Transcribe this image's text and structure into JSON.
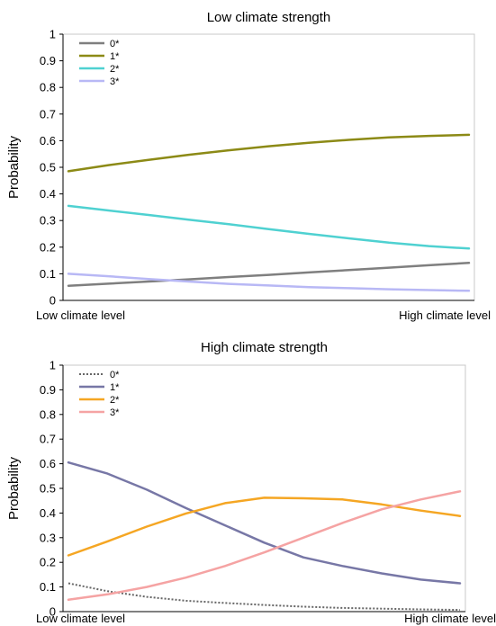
{
  "chart_data": [
    {
      "type": "line",
      "title": "Low climate strength",
      "ylabel": "Probability",
      "xlabel": "",
      "categories": [
        "Low climate level",
        "High climate level"
      ],
      "x": [
        0,
        1,
        2,
        3,
        4,
        5,
        6,
        7,
        8,
        9,
        10
      ],
      "ylim": [
        0,
        1
      ],
      "yticks": [
        "0",
        "0.1",
        "0.2",
        "0.3",
        "0.4",
        "0.5",
        "0.6",
        "0.7",
        "0.8",
        "0.9",
        "1"
      ],
      "legend": "top-left",
      "series": [
        {
          "name": "0*",
          "color": "#7f7f7f",
          "dash": "solid",
          "values": [
            0.055,
            0.063,
            0.071,
            0.079,
            0.088,
            0.096,
            0.105,
            0.114,
            0.123,
            0.132,
            0.141
          ]
        },
        {
          "name": "1*",
          "color": "#8c8a16",
          "values": [
            0.485,
            0.508,
            0.528,
            0.547,
            0.564,
            0.579,
            0.592,
            0.603,
            0.612,
            0.618,
            0.622
          ]
        },
        {
          "name": "2*",
          "color": "#4fd1d1",
          "values": [
            0.355,
            0.338,
            0.321,
            0.303,
            0.286,
            0.268,
            0.25,
            0.233,
            0.217,
            0.204,
            0.195
          ]
        },
        {
          "name": "3*",
          "color": "#b8b8f5",
          "values": [
            0.1,
            0.091,
            0.08,
            0.071,
            0.062,
            0.056,
            0.05,
            0.046,
            0.042,
            0.039,
            0.036
          ]
        }
      ]
    },
    {
      "type": "line",
      "title": "High climate strength",
      "ylabel": "Probability",
      "xlabel": "",
      "categories": [
        "Low climate level",
        "High climate level"
      ],
      "x": [
        0,
        1,
        2,
        3,
        4,
        5,
        6,
        7,
        8,
        9,
        10
      ],
      "ylim": [
        0,
        1
      ],
      "yticks": [
        "0",
        "0.1",
        "0.2",
        "0.3",
        "0.4",
        "0.5",
        "0.6",
        "0.7",
        "0.8",
        "0.9",
        "1"
      ],
      "legend": "top-left",
      "series": [
        {
          "name": "0*",
          "color": "#666666",
          "dash": "dotted",
          "values": [
            0.115,
            0.083,
            0.06,
            0.044,
            0.035,
            0.027,
            0.02,
            0.015,
            0.012,
            0.009,
            0.007
          ]
        },
        {
          "name": "1*",
          "color": "#7777a6",
          "values": [
            0.605,
            0.56,
            0.495,
            0.42,
            0.35,
            0.28,
            0.22,
            0.185,
            0.155,
            0.13,
            0.115
          ]
        },
        {
          "name": "2*",
          "color": "#f5a623",
          "values": [
            0.228,
            0.285,
            0.345,
            0.398,
            0.44,
            0.462,
            0.46,
            0.455,
            0.435,
            0.41,
            0.388
          ]
        },
        {
          "name": "3*",
          "color": "#f5a3a3",
          "values": [
            0.048,
            0.07,
            0.1,
            0.138,
            0.185,
            0.24,
            0.3,
            0.36,
            0.415,
            0.455,
            0.488
          ]
        }
      ]
    }
  ]
}
